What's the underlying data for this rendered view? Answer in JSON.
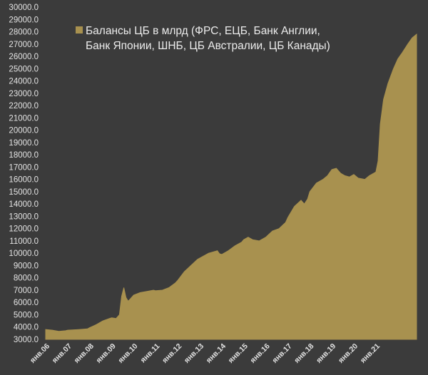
{
  "chart_data": {
    "type": "area",
    "legend": {
      "placement": "top-left",
      "lines": [
        "Балансы ЦБ в млрд (ФРС, ЕЦБ, Банк Англии,",
        "Банк Японии, ШНБ, ЦБ Австралии, ЦБ Канады)"
      ]
    },
    "series": [
      {
        "name": "Балансы ЦБ в млрд (ФРС, ЕЦБ, Банк Англии, Банк Японии, ШНБ, ЦБ Австралии, ЦБ Канады)",
        "color": "#a8914f",
        "points": [
          [
            2006.0,
            3800
          ],
          [
            2006.3,
            3750
          ],
          [
            2006.6,
            3650
          ],
          [
            2006.9,
            3700
          ],
          [
            2007.0,
            3750
          ],
          [
            2007.5,
            3800
          ],
          [
            2007.9,
            3850
          ],
          [
            2008.0,
            3950
          ],
          [
            2008.3,
            4200
          ],
          [
            2008.6,
            4500
          ],
          [
            2008.9,
            4700
          ],
          [
            2009.0,
            4750
          ],
          [
            2009.2,
            4700
          ],
          [
            2009.35,
            5000
          ],
          [
            2009.45,
            6500
          ],
          [
            2009.55,
            7200
          ],
          [
            2009.65,
            6400
          ],
          [
            2009.75,
            6100
          ],
          [
            2009.9,
            6400
          ],
          [
            2010.0,
            6600
          ],
          [
            2010.3,
            6800
          ],
          [
            2010.6,
            6900
          ],
          [
            2010.9,
            7000
          ],
          [
            2011.0,
            6950
          ],
          [
            2011.3,
            7000
          ],
          [
            2011.6,
            7200
          ],
          [
            2011.9,
            7600
          ],
          [
            2012.0,
            7800
          ],
          [
            2012.3,
            8500
          ],
          [
            2012.6,
            9000
          ],
          [
            2012.9,
            9500
          ],
          [
            2013.0,
            9600
          ],
          [
            2013.4,
            10000
          ],
          [
            2013.8,
            10200
          ],
          [
            2013.9,
            9950
          ],
          [
            2014.0,
            9900
          ],
          [
            2014.3,
            10200
          ],
          [
            2014.6,
            10600
          ],
          [
            2014.9,
            10900
          ],
          [
            2015.0,
            11100
          ],
          [
            2015.2,
            11300
          ],
          [
            2015.4,
            11100
          ],
          [
            2015.7,
            11000
          ],
          [
            2016.0,
            11300
          ],
          [
            2016.3,
            11800
          ],
          [
            2016.6,
            12000
          ],
          [
            2016.9,
            12500
          ],
          [
            2017.0,
            12900
          ],
          [
            2017.3,
            13800
          ],
          [
            2017.6,
            14300
          ],
          [
            2017.75,
            14000
          ],
          [
            2017.9,
            14400
          ],
          [
            2018.0,
            15000
          ],
          [
            2018.3,
            15700
          ],
          [
            2018.6,
            16000
          ],
          [
            2018.8,
            16300
          ],
          [
            2019.0,
            16800
          ],
          [
            2019.2,
            16900
          ],
          [
            2019.4,
            16500
          ],
          [
            2019.6,
            16300
          ],
          [
            2019.8,
            16200
          ],
          [
            2020.0,
            16400
          ],
          [
            2020.2,
            16100
          ],
          [
            2020.5,
            16000
          ],
          [
            2020.7,
            16300
          ],
          [
            2020.9,
            16500
          ],
          [
            2021.0,
            16600
          ],
          [
            2021.1,
            17500
          ],
          [
            2021.2,
            20500
          ],
          [
            2021.35,
            22500
          ],
          [
            2021.55,
            23800
          ],
          [
            2021.8,
            25000
          ],
          [
            2022.0,
            25800
          ],
          [
            2022.2,
            26300
          ],
          [
            2022.45,
            27000
          ],
          [
            2022.65,
            27500
          ],
          [
            2022.85,
            27800
          ]
        ]
      }
    ],
    "y_axis": {
      "min": 3000,
      "max": 30000,
      "step": 1000,
      "tick_labels": [
        "3000.0",
        "4000.0",
        "5000.0",
        "6000.0",
        "7000.0",
        "8000.0",
        "9000.0",
        "10000.0",
        "11000.0",
        "12000.0",
        "13000.0",
        "14000.0",
        "15000.0",
        "16000.0",
        "17000.0",
        "18000.0",
        "19000.0",
        "20000.0",
        "21000.0",
        "22000.0",
        "23000.0",
        "24000.0",
        "25000.0",
        "26000.0",
        "27000.0",
        "28000.0",
        "29000.0",
        "30000.0"
      ]
    },
    "x_axis": {
      "min": 2006.0,
      "max": 2022.85,
      "ticks": [
        {
          "x": 2006,
          "label": "янв.06"
        },
        {
          "x": 2007,
          "label": "янв.07"
        },
        {
          "x": 2008,
          "label": "янв.08"
        },
        {
          "x": 2009,
          "label": "янв.09"
        },
        {
          "x": 2010,
          "label": "янв.10"
        },
        {
          "x": 2011,
          "label": "янв.11"
        },
        {
          "x": 2012,
          "label": "янв.12"
        },
        {
          "x": 2013,
          "label": "янв.13"
        },
        {
          "x": 2014,
          "label": "янв.14"
        },
        {
          "x": 2015,
          "label": "янв.15"
        },
        {
          "x": 2016,
          "label": "янв.16"
        },
        {
          "x": 2017,
          "label": "янв.17"
        },
        {
          "x": 2018,
          "label": "янв.18"
        },
        {
          "x": 2019,
          "label": "янв.19"
        },
        {
          "x": 2020,
          "label": "янв.20"
        },
        {
          "x": 2021,
          "label": "янв.21"
        }
      ]
    },
    "grid": false
  }
}
